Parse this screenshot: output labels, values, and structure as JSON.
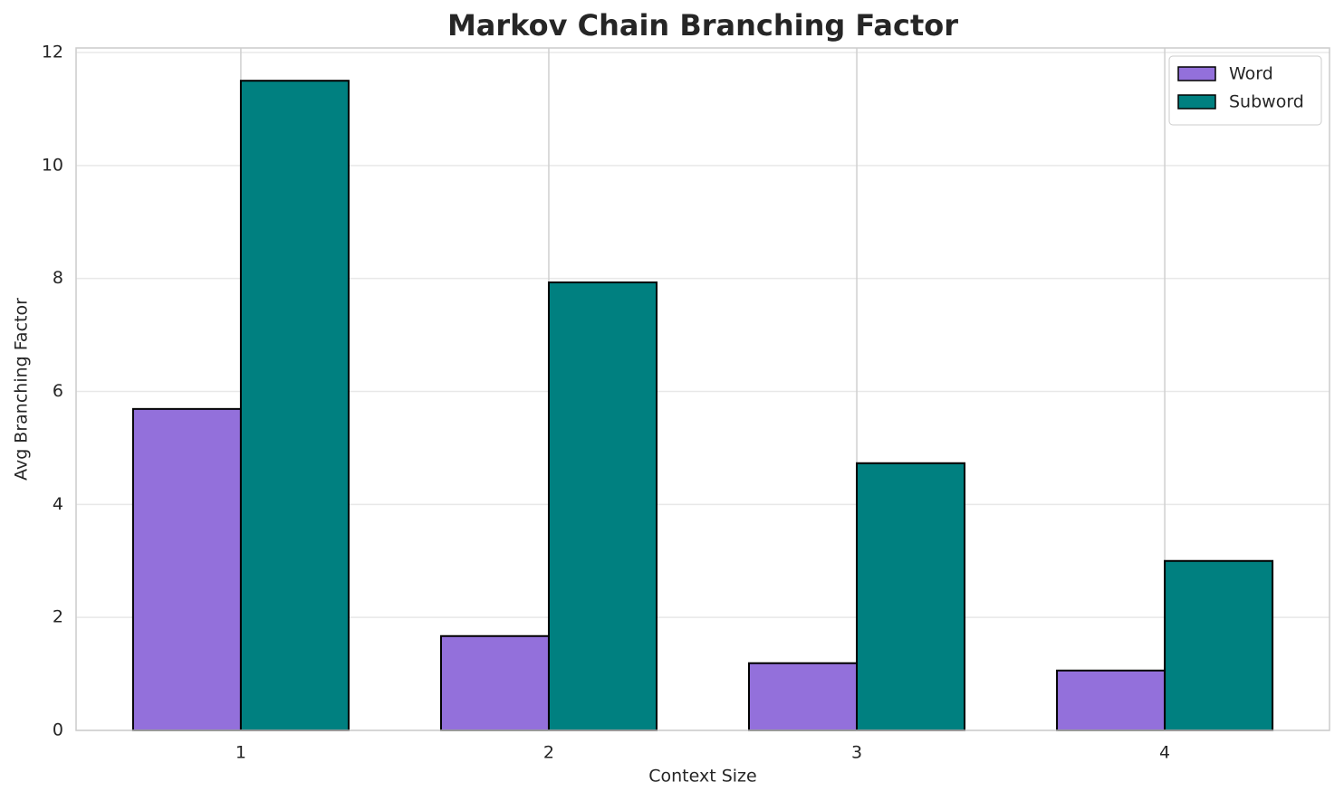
{
  "chart_data": {
    "type": "bar",
    "title": "Markov Chain Branching Factor",
    "xlabel": "Context Size",
    "ylabel": "Avg Branching Factor",
    "categories": [
      "1",
      "2",
      "3",
      "4"
    ],
    "series": [
      {
        "name": "Word",
        "color": "#9370db",
        "values": [
          5.69,
          1.67,
          1.19,
          1.06
        ]
      },
      {
        "name": "Subword",
        "color": "#008080",
        "values": [
          11.5,
          7.93,
          4.73,
          3.0
        ]
      }
    ],
    "ylim": [
      0,
      12.08
    ],
    "yticks": [
      0,
      2,
      4,
      6,
      8,
      10,
      12
    ],
    "grid": true,
    "legend": "upper right"
  }
}
